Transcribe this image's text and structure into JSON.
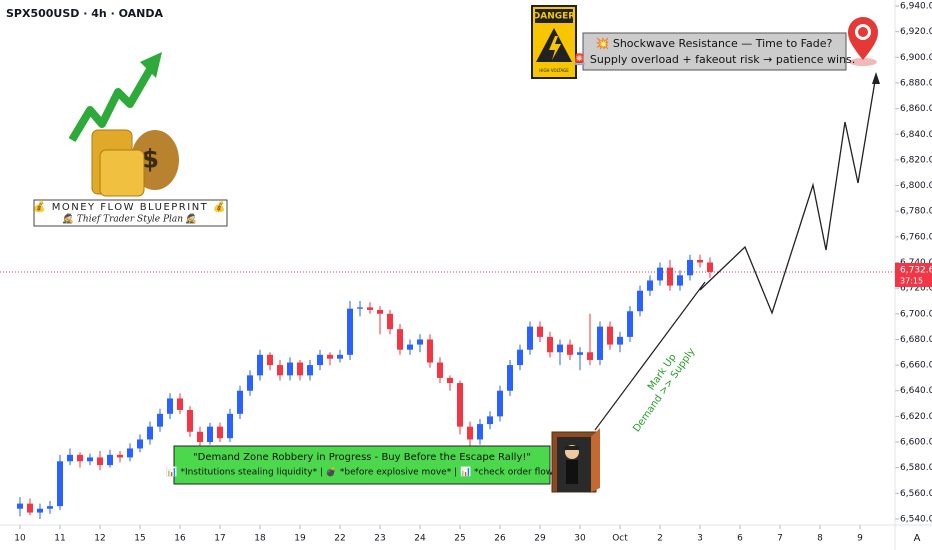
{
  "header": "SPX500USD · 4h · OANDA",
  "chart_data": {
    "type": "candlestick",
    "x": [
      0,
      0.25,
      0.5,
      0.75,
      1,
      1.25,
      1.5,
      1.75,
      2,
      2.25,
      2.5,
      2.75,
      3,
      3.25,
      3.5,
      3.75,
      4,
      4.25,
      4.5,
      4.75,
      5,
      5.25,
      5.5,
      5.75,
      6,
      6.25,
      6.5,
      6.75,
      7,
      7.25,
      7.5,
      7.75,
      8,
      8.25,
      8.5,
      8.75,
      9,
      9.25,
      9.5,
      9.75,
      10,
      10.25,
      10.5,
      10.75,
      11,
      11.25,
      11.5,
      11.75,
      12,
      12.25,
      12.5,
      12.75,
      13,
      13.25,
      13.5,
      13.75,
      14,
      14.25,
      14.5,
      14.75,
      15,
      15.25,
      15.5,
      15.75,
      16,
      16.25,
      16.5,
      16.75,
      17,
      17.25
    ],
    "open": [
      6548,
      6552,
      6545,
      6548,
      6550,
      6585,
      6590,
      6585,
      6588,
      6582,
      6590,
      6588,
      6595,
      6602,
      6612,
      6622,
      6634,
      6625,
      6608,
      6600,
      6612,
      6603,
      6622,
      6640,
      6652,
      6668,
      6660,
      6652,
      6662,
      6652,
      6660,
      6668,
      6665,
      6668,
      6704,
      6705,
      6703,
      6700,
      6688,
      6672,
      6676,
      6680,
      6662,
      6650,
      6646,
      6612,
      6602,
      6614,
      6620,
      6640,
      6660,
      6672,
      6690,
      6682,
      6670,
      6676,
      6668,
      6670,
      6664,
      6690,
      6676,
      6682,
      6702,
      6718,
      6726,
      6736,
      6722,
      6730,
      6742,
      6740
    ],
    "high": [
      6557,
      6556,
      6552,
      6554,
      6590,
      6595,
      6592,
      6591,
      6593,
      6594,
      6593,
      6599,
      6606,
      6616,
      6626,
      6638,
      6638,
      6628,
      6612,
      6615,
      6615,
      6626,
      6644,
      6656,
      6672,
      6670,
      6664,
      6666,
      6664,
      6664,
      6672,
      6670,
      6672,
      6710,
      6710,
      6709,
      6706,
      6703,
      6692,
      6680,
      6684,
      6684,
      6666,
      6652,
      6648,
      6616,
      6618,
      6624,
      6644,
      6664,
      6676,
      6694,
      6694,
      6686,
      6680,
      6680,
      6674,
      6700,
      6694,
      6694,
      6686,
      6706,
      6722,
      6730,
      6740,
      6742,
      6734,
      6746,
      6746,
      6744
    ],
    "low": [
      6542,
      6543,
      6540,
      6544,
      6547,
      6582,
      6580,
      6582,
      6578,
      6580,
      6584,
      6585,
      6592,
      6598,
      6608,
      6618,
      6622,
      6604,
      6596,
      6598,
      6600,
      6600,
      6618,
      6636,
      6648,
      6656,
      6648,
      6648,
      6648,
      6648,
      6656,
      6660,
      6662,
      6664,
      6698,
      6700,
      6684,
      6684,
      6668,
      6668,
      6670,
      6658,
      6646,
      6640,
      6606,
      6596,
      6598,
      6610,
      6616,
      6636,
      6656,
      6668,
      6678,
      6666,
      6660,
      6664,
      6656,
      6660,
      6660,
      6672,
      6670,
      6678,
      6698,
      6714,
      6722,
      6718,
      6718,
      6726,
      6736,
      6728
    ],
    "close": [
      6552,
      6545,
      6548,
      6550,
      6585,
      6590,
      6585,
      6588,
      6582,
      6590,
      6588,
      6595,
      6602,
      6612,
      6622,
      6634,
      6625,
      6608,
      6600,
      6612,
      6603,
      6622,
      6640,
      6652,
      6668,
      6660,
      6652,
      6662,
      6652,
      6660,
      6668,
      6665,
      6668,
      6704,
      6705,
      6703,
      6700,
      6688,
      6672,
      6676,
      6680,
      6662,
      6650,
      6646,
      6612,
      6602,
      6614,
      6620,
      6640,
      6660,
      6672,
      6690,
      6682,
      6670,
      6676,
      6668,
      6670,
      6664,
      6690,
      6676,
      6682,
      6702,
      6718,
      6726,
      6736,
      6722,
      6730,
      6742,
      6740,
      6732.6
    ],
    "up_color": "#2962ff",
    "down_color": "#f23645",
    "xlim": [
      -0.5,
      21.875
    ],
    "xticks": [
      {
        "value": 0,
        "label": "10"
      },
      {
        "value": 1,
        "label": "11"
      },
      {
        "value": 2,
        "label": "12"
      },
      {
        "value": 3,
        "label": "15"
      },
      {
        "value": 4,
        "label": "16"
      },
      {
        "value": 5,
        "label": "17"
      },
      {
        "value": 6,
        "label": "18"
      },
      {
        "value": 7,
        "label": "19"
      },
      {
        "value": 8,
        "label": "22"
      },
      {
        "value": 9,
        "label": "23"
      },
      {
        "value": 10,
        "label": "24"
      },
      {
        "value": 11,
        "label": "25"
      },
      {
        "value": 12,
        "label": "26"
      },
      {
        "value": 13,
        "label": "29"
      },
      {
        "value": 14,
        "label": "30"
      },
      {
        "value": 15,
        "label": "Oct"
      },
      {
        "value": 16,
        "label": "2"
      },
      {
        "value": 17,
        "label": "3"
      },
      {
        "value": 18,
        "label": "6"
      },
      {
        "value": 19,
        "label": "7"
      },
      {
        "value": 20,
        "label": "8"
      },
      {
        "value": 21,
        "label": "9"
      }
    ],
    "ylim": [
      6535.3,
      6944.7
    ],
    "yticks": [
      {
        "value": 6540,
        "label": "6,540.0"
      },
      {
        "value": 6560,
        "label": "6,560.0"
      },
      {
        "value": 6580,
        "label": "6,580.0"
      },
      {
        "value": 6600,
        "label": "6,600.0"
      },
      {
        "value": 6620,
        "label": "6,620.0"
      },
      {
        "value": 6640,
        "label": "6,640.0"
      },
      {
        "value": 6660,
        "label": "6,660.0"
      },
      {
        "value": 6680,
        "label": "6,680.0"
      },
      {
        "value": 6700,
        "label": "6,700.0"
      },
      {
        "value": 6720,
        "label": "6,720.0"
      },
      {
        "value": 6740,
        "label": "6,740.0"
      },
      {
        "value": 6760,
        "label": "6,760.0"
      },
      {
        "value": 6780,
        "label": "6,780.0"
      },
      {
        "value": 6800,
        "label": "6,800.0"
      },
      {
        "value": 6820,
        "label": "6,820.0"
      },
      {
        "value": 6840,
        "label": "6,840.0"
      },
      {
        "value": 6860,
        "label": "6,860.0"
      },
      {
        "value": 6880,
        "label": "6,880.0"
      },
      {
        "value": 6900,
        "label": "6,900.0"
      },
      {
        "value": 6920,
        "label": "6,920.0"
      },
      {
        "value": 6940,
        "label": "6,940.0"
      }
    ],
    "last_price": {
      "value": 6732.6,
      "label": "6,732.6",
      "countdown": "37:15"
    }
  },
  "annotations": {
    "resistance": [
      "💥 Shockwave Resistance — Time to Fade?",
      "🚨 Supply overload + fakeout risk → patience wins."
    ],
    "blueprint": [
      "💰 MONEY FLOW BLUEPRINT 💰",
      "🕵 Thief Trader Style Plan 🕵"
    ],
    "demand": [
      "\"Demand Zone Robbery in Progress - Buy Before the Escape Rally!\"",
      "📊 *Institutions stealing liquidity* | 💣 *before explosive move* | 📊 *check order flow*"
    ],
    "markup": [
      "Mark Up",
      "Demand >> Supply"
    ],
    "danger": [
      "DANGER",
      "HIGH VOLTAGE"
    ],
    "auto": "A"
  }
}
